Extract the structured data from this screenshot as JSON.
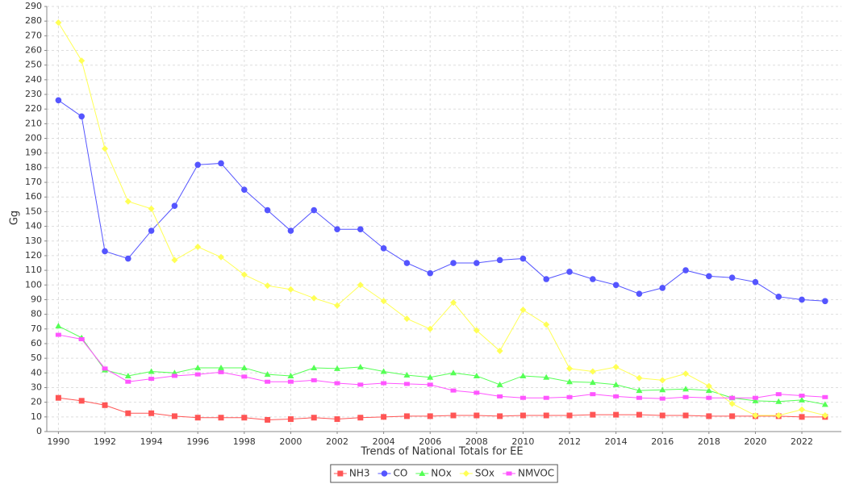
{
  "chart_data": {
    "type": "line",
    "x_label": "Trends of National Totals for EE",
    "y_label": "Gg",
    "x": [
      1990,
      1991,
      1992,
      1993,
      1994,
      1995,
      1996,
      1997,
      1998,
      1999,
      2000,
      2001,
      2002,
      2003,
      2004,
      2005,
      2006,
      2007,
      2008,
      2009,
      2010,
      2011,
      2012,
      2013,
      2014,
      2015,
      2016,
      2017,
      2018,
      2019,
      2020,
      2021,
      2022,
      2023
    ],
    "xlim": [
      1989.5,
      2023.7
    ],
    "xticks": [
      1990,
      1992,
      1994,
      1996,
      1998,
      2000,
      2002,
      2004,
      2006,
      2008,
      2010,
      2012,
      2014,
      2016,
      2018,
      2020,
      2022
    ],
    "ylim": [
      0,
      290
    ],
    "yticks": [
      0,
      10,
      20,
      30,
      40,
      50,
      60,
      70,
      80,
      90,
      100,
      110,
      120,
      130,
      140,
      150,
      160,
      170,
      180,
      190,
      200,
      210,
      220,
      230,
      240,
      250,
      260,
      270,
      280,
      290
    ],
    "grid": true,
    "legend": "bottom",
    "series": [
      {
        "name": "NH3",
        "color": "#ff5555",
        "marker": "square",
        "values": [
          23,
          21,
          18,
          12.5,
          12.5,
          10.5,
          9.5,
          9.5,
          9.5,
          8,
          8.5,
          9.5,
          8.5,
          9.5,
          10,
          10.5,
          10.5,
          11,
          11,
          10.5,
          11,
          11,
          11,
          11.5,
          11.5,
          11.5,
          11,
          11,
          10.5,
          10.5,
          10.5,
          10.5,
          10,
          10
        ]
      },
      {
        "name": "CO",
        "color": "#5555ff",
        "marker": "circle",
        "values": [
          226,
          215,
          123,
          118,
          137,
          154,
          182,
          183,
          165,
          151,
          137,
          151,
          138,
          138,
          125,
          115,
          108,
          115,
          115,
          117,
          118,
          104,
          109,
          104,
          100,
          94,
          98,
          110,
          106,
          105,
          102,
          92,
          90,
          89
        ]
      },
      {
        "name": "NOx",
        "color": "#55ff55",
        "marker": "triangle",
        "values": [
          72,
          64,
          42,
          38,
          41,
          40,
          43.5,
          43.5,
          43.5,
          39,
          38,
          43.5,
          43,
          44,
          41,
          38.5,
          37,
          40,
          38,
          32,
          38,
          37,
          34,
          33.5,
          32,
          28,
          28.5,
          29,
          28,
          23,
          21,
          20.5,
          21.5,
          18.5
        ]
      },
      {
        "name": "SOx",
        "color": "#ffff55",
        "marker": "diamond",
        "values": [
          279,
          253,
          193,
          157,
          152,
          117,
          126,
          119,
          107,
          99.5,
          97,
          91,
          86,
          100,
          89,
          77,
          70,
          88,
          69,
          55,
          83,
          73,
          43,
          41,
          44,
          36.5,
          35,
          39.5,
          31,
          19,
          11,
          11,
          15,
          11
        ]
      },
      {
        "name": "NMVOC",
        "color": "#ff55ff",
        "marker": "rect",
        "values": [
          66,
          63,
          43,
          34,
          36,
          38,
          39,
          40.5,
          37.5,
          34,
          34,
          35,
          33,
          32,
          33,
          32.5,
          32,
          28,
          26.5,
          24,
          23,
          23,
          23.5,
          25.5,
          24,
          23,
          22.5,
          23.5,
          23,
          23,
          23,
          25.5,
          24.5,
          23.5
        ]
      }
    ]
  }
}
